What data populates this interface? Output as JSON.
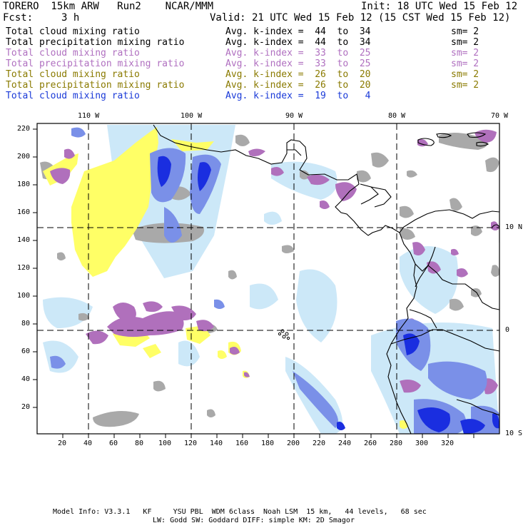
{
  "header": {
    "model": "TORERO  15km ARW   Run2    NCAR/MMM",
    "init": "Init: 18 UTC Wed 15 Feb 12",
    "fcst_label": "Fcst:",
    "fcst_value": "3 h",
    "valid": "Valid: 21 UTC Wed 15 Feb 12 (15 CST Wed 15 Feb 12)"
  },
  "legend": [
    {
      "field": "Total cloud mixing ratio",
      "kindex": "Avg. k-index =  44  to  34",
      "sm": "sm= 2",
      "color": "#000000"
    },
    {
      "field": "Total precipitation mixing ratio",
      "kindex": "Avg. k-index =  44  to  34",
      "sm": "sm= 2",
      "color": "#000000"
    },
    {
      "field": "Total cloud mixing ratio",
      "kindex": "Avg. k-index =  33  to  25",
      "sm": "sm= 2",
      "color": "#b070c0"
    },
    {
      "field": "Total precipitation mixing ratio",
      "kindex": "Avg. k-index =  33  to  25",
      "sm": "sm= 2",
      "color": "#b070c0"
    },
    {
      "field": "Total cloud mixing ratio",
      "kindex": "Avg. k-index =  26  to  20",
      "sm": "sm= 2",
      "color": "#8a7a00"
    },
    {
      "field": "Total precipitation mixing ratio",
      "kindex": "Avg. k-index =  26  to  20",
      "sm": "sm= 2",
      "color": "#8a7a00"
    },
    {
      "field": "Total cloud mixing ratio",
      "kindex": "Avg. k-index =  19  to   4",
      "sm": "",
      "color": "#1a3ad8"
    }
  ],
  "axes": {
    "lon_labels": [
      "110 W",
      "100 W",
      "90 W",
      "80 W",
      "70 W"
    ],
    "lat_labels": [
      "10 N",
      "0",
      "10 S"
    ],
    "y_ticks": [
      "220",
      "200",
      "180",
      "160",
      "140",
      "120",
      "100",
      "80",
      "60",
      "40",
      "20"
    ],
    "x_ticks": [
      "20",
      "40",
      "60",
      "80",
      "100",
      "120",
      "140",
      "160",
      "180",
      "200",
      "220",
      "240",
      "260",
      "280",
      "300",
      "320"
    ]
  },
  "footer": {
    "line1": "Model Info: V3.3.1   KF     YSU PBL  WDM 6class  Noah LSM  15 km,   44 levels,   68 sec",
    "line2": "LW: Godd SW: Goddard DIFF: simple KM: 2D Smagor"
  },
  "colors": {
    "gray": "#a9a9a9",
    "purple": "#b070bc",
    "yellow": "#ffff66",
    "light_blue": "#cce8f8",
    "mid_blue": "#7a90e8",
    "dark_blue": "#1a2ee0"
  }
}
